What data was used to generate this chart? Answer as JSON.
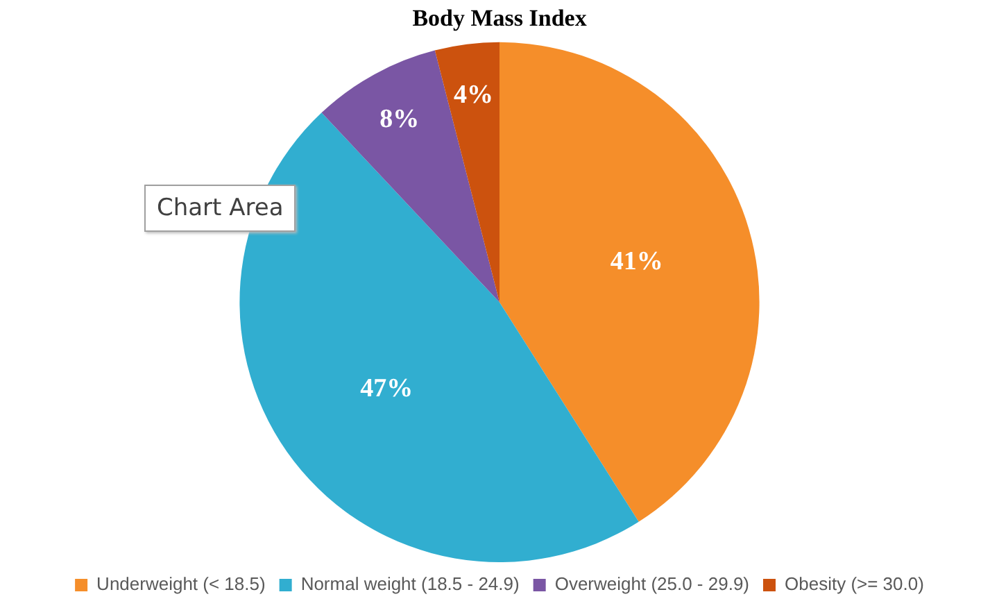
{
  "chart_data": {
    "type": "pie",
    "title": "Body Mass Index",
    "categories": [
      "Underweight (< 18.5)",
      "Normal weight (18.5 - 24.9)",
      "Overweight (25.0 - 29.9)",
      "Obesity (>= 30.0)"
    ],
    "values": [
      41,
      47,
      8,
      4
    ],
    "colors": [
      "#f58e2a",
      "#31aed0",
      "#7a56a4",
      "#cc520e"
    ],
    "value_labels": [
      "41%",
      "47%",
      "8%",
      "4%"
    ],
    "legend": "bottom",
    "annotations": [
      "Chart Area"
    ]
  }
}
